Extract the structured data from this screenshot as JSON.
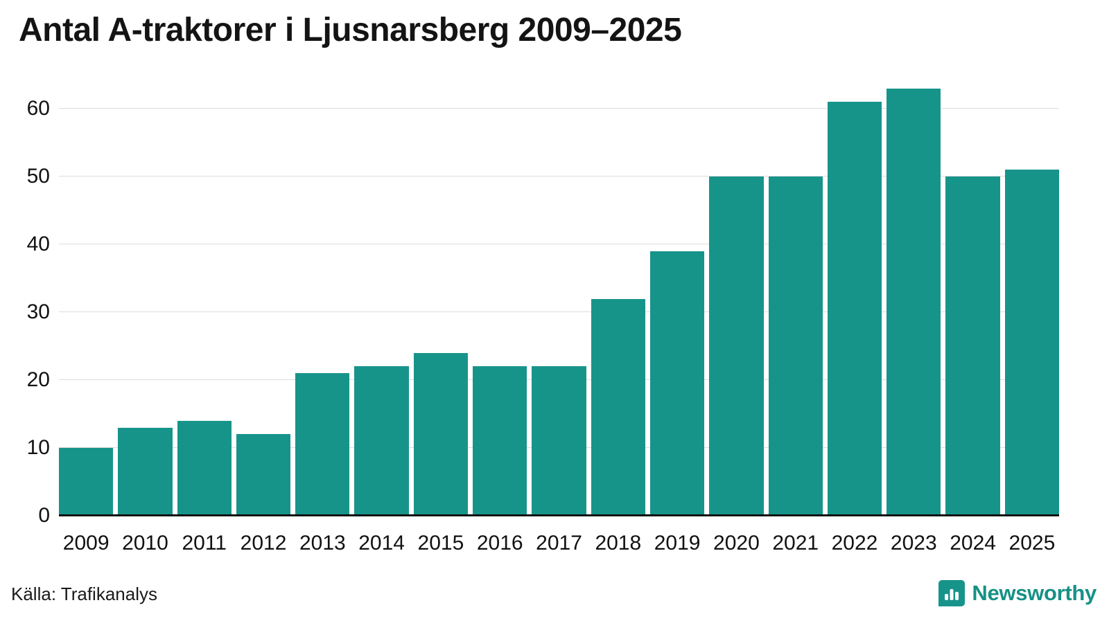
{
  "title": "Antal A-traktorer i Ljusnarsberg 2009–2025",
  "source": "Källa: Trafikanalys",
  "brand": {
    "name": "Newsworthy",
    "color": "#179186"
  },
  "chart_data": {
    "type": "bar",
    "title": "Antal A-traktorer i Ljusnarsberg 2009–2025",
    "categories": [
      "2009",
      "2010",
      "2011",
      "2012",
      "2013",
      "2014",
      "2015",
      "2016",
      "2017",
      "2018",
      "2019",
      "2020",
      "2021",
      "2022",
      "2023",
      "2024",
      "2025"
    ],
    "values": [
      10,
      13,
      14,
      12,
      21,
      22,
      24,
      22,
      22,
      32,
      39,
      50,
      50,
      61,
      63,
      50,
      51
    ],
    "xlabel": "",
    "ylabel": "",
    "ylim": [
      0,
      64
    ],
    "yticks": [
      0,
      10,
      20,
      30,
      40,
      50,
      60
    ],
    "bar_color": "#17948a",
    "grid": true,
    "gridline_color": "#dcdcdc",
    "legend_position": "none"
  }
}
